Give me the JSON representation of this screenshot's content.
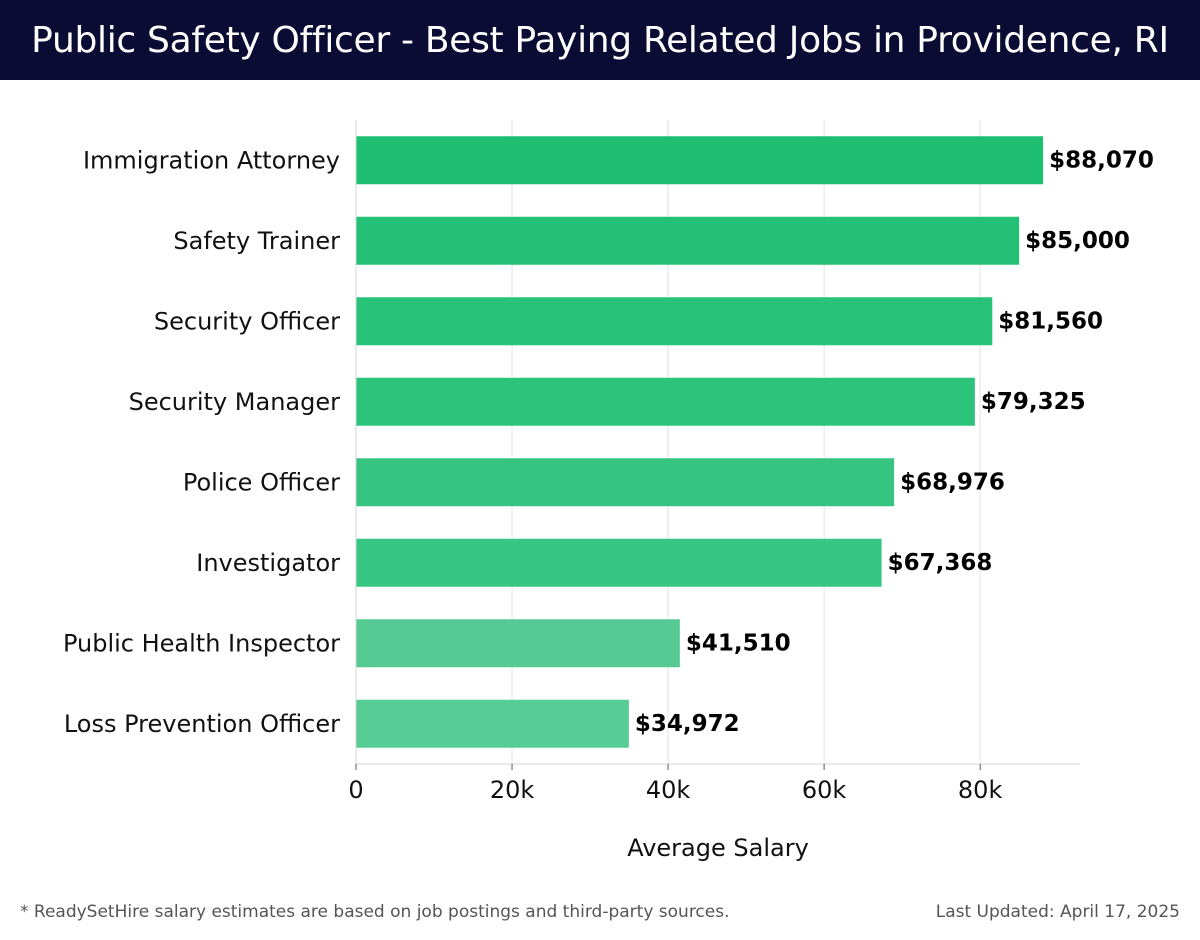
{
  "header": {
    "title": "Public Safety Officer - Best Paying Related Jobs in Providence, RI"
  },
  "chart_data": {
    "type": "bar",
    "orientation": "horizontal",
    "categories": [
      "Immigration Attorney",
      "Safety Trainer",
      "Security Officer",
      "Security Manager",
      "Police Officer",
      "Investigator",
      "Public Health Inspector",
      "Loss Prevention Officer"
    ],
    "values": [
      88070,
      85000,
      81560,
      79325,
      68976,
      67368,
      41510,
      34972
    ],
    "value_labels": [
      "$88,070",
      "$85,000",
      "$81,560",
      "$79,325",
      "$68,976",
      "$67,368",
      "$41,510",
      "$34,972"
    ],
    "bar_colors": [
      "#1fbf72",
      "#23c075",
      "#28c278",
      "#2cc47b",
      "#35c580",
      "#38c683",
      "#55cb93",
      "#57cc95"
    ],
    "xlabel": "Average Salary",
    "ylabel": "",
    "xlim": [
      0,
      92800
    ],
    "xticks": [
      0,
      20000,
      40000,
      60000,
      80000
    ],
    "xtick_labels": [
      "0",
      "20k",
      "40k",
      "60k",
      "80k"
    ],
    "grid": true
  },
  "footer": {
    "note": "* ReadySetHire salary estimates are based on job postings and third-party sources.",
    "updated": "Last Updated: April 17, 2025"
  }
}
